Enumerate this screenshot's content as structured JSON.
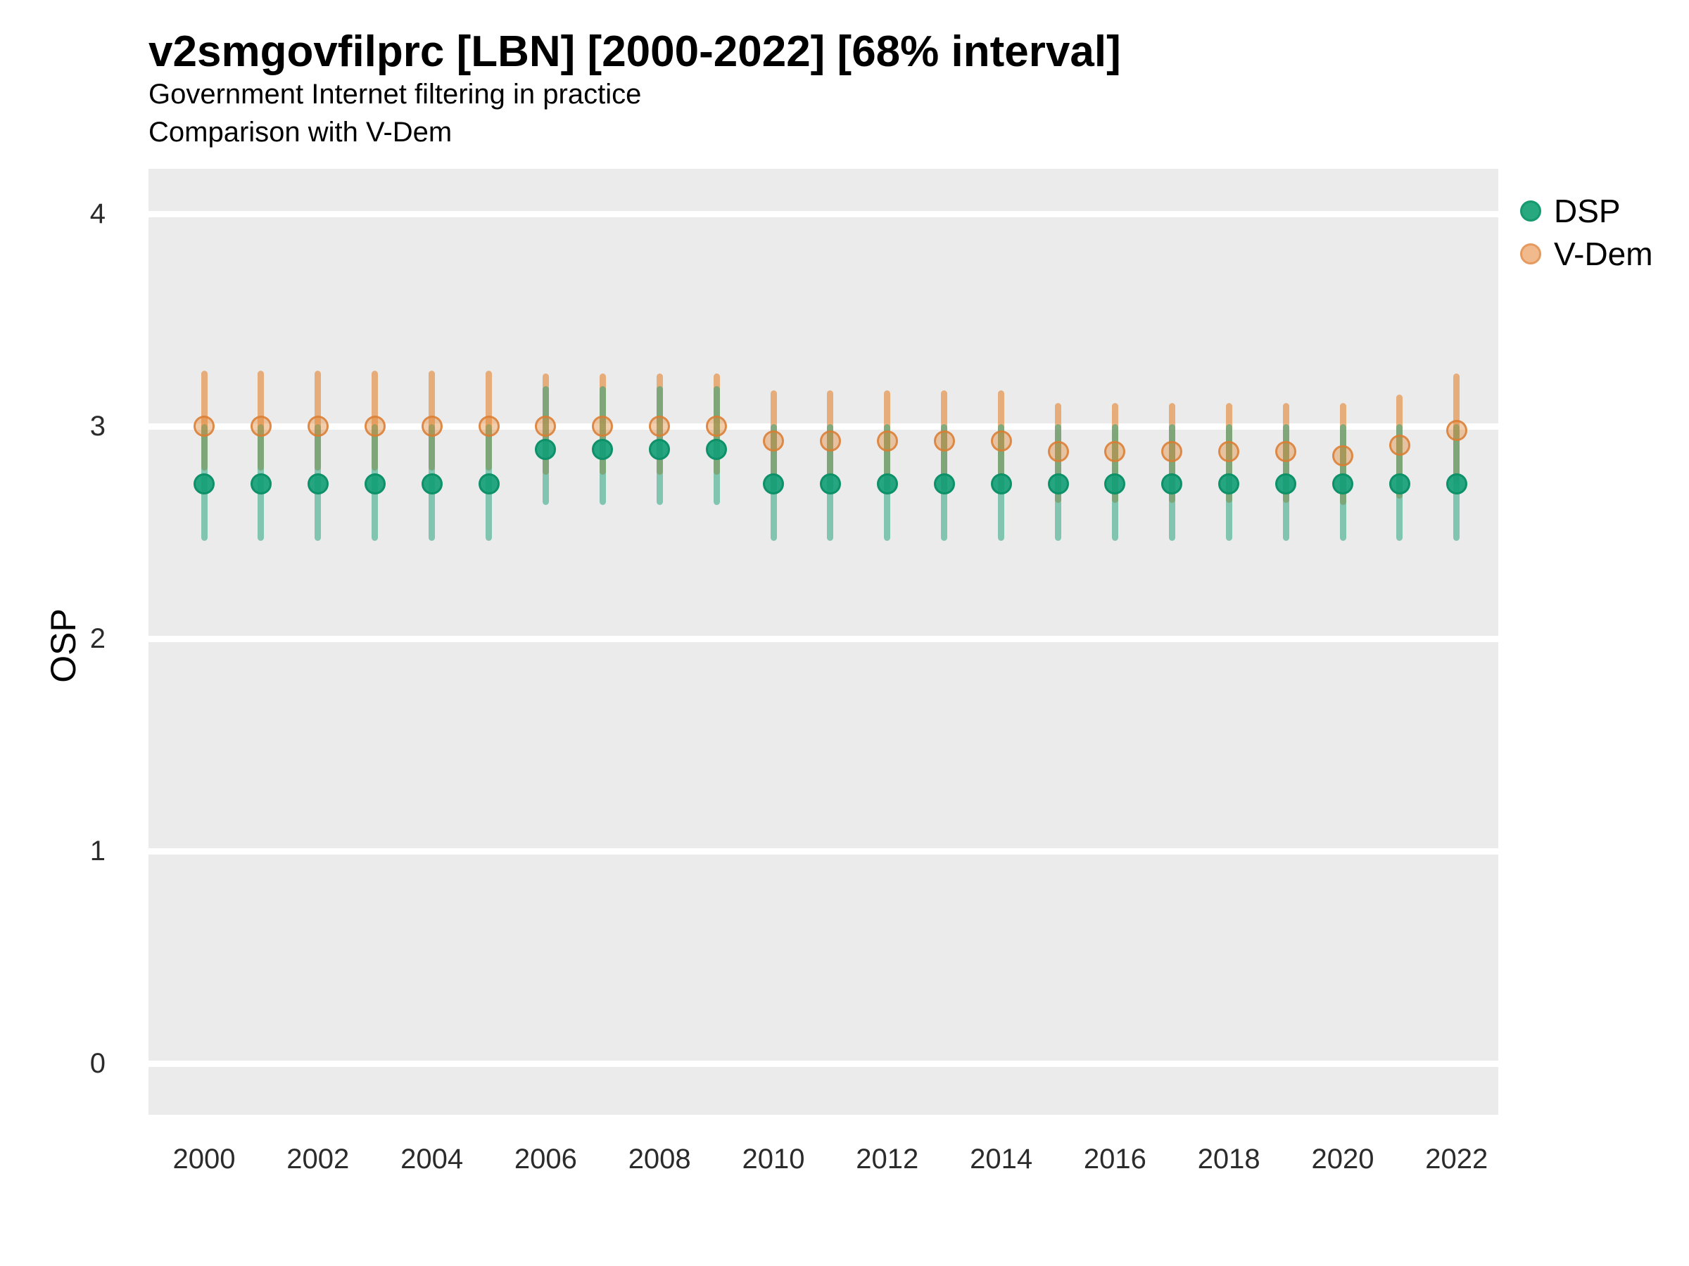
{
  "header": {
    "title": "v2smgovfilprc [LBN] [2000-2022] [68% interval]",
    "subtitle": "Government Internet filtering in practice",
    "subtitle2": "Comparison with V-Dem"
  },
  "legend": {
    "items": [
      {
        "id": "dsp",
        "label": "DSP",
        "color": "#1BA179"
      },
      {
        "id": "vdem",
        "label": "V-Dem",
        "color": "#E28A4C"
      }
    ],
    "position": "right-top"
  },
  "chart_data": {
    "type": "pointrange",
    "title": "v2smgovfilprc [LBN] [2000-2022] [68% interval]",
    "subtitle": "Government Internet filtering in practice",
    "subtitle2": "Comparison with V-Dem",
    "xlabel": "",
    "ylabel": "OSP",
    "interval": "68%",
    "ylim": [
      -0.25,
      4.25
    ],
    "yticks": [
      0,
      1,
      2,
      3,
      4
    ],
    "xticks": [
      2000,
      2002,
      2004,
      2006,
      2008,
      2010,
      2012,
      2014,
      2016,
      2018,
      2020,
      2022
    ],
    "grid": "white horizontal major lines on gray panel",
    "panel_bg": "#EBEBEB",
    "gridline_color": "#FFFFFF",
    "x": [
      2000,
      2001,
      2002,
      2003,
      2004,
      2005,
      2006,
      2007,
      2008,
      2009,
      2010,
      2011,
      2012,
      2013,
      2014,
      2015,
      2016,
      2017,
      2018,
      2019,
      2020,
      2021,
      2022
    ],
    "series": [
      {
        "name": "DSP",
        "color": "#1BA179",
        "values": [
          2.73,
          2.73,
          2.73,
          2.73,
          2.73,
          2.73,
          2.89,
          2.89,
          2.89,
          2.89,
          2.73,
          2.73,
          2.73,
          2.73,
          2.73,
          2.73,
          2.73,
          2.73,
          2.73,
          2.73,
          2.73,
          2.73,
          2.73
        ],
        "lower": [
          2.46,
          2.46,
          2.46,
          2.46,
          2.46,
          2.46,
          2.63,
          2.63,
          2.63,
          2.63,
          2.46,
          2.46,
          2.46,
          2.46,
          2.46,
          2.46,
          2.46,
          2.46,
          2.46,
          2.46,
          2.46,
          2.46,
          2.46
        ],
        "upper": [
          3.01,
          3.01,
          3.01,
          3.01,
          3.01,
          3.01,
          3.19,
          3.19,
          3.19,
          3.19,
          3.01,
          3.01,
          3.01,
          3.01,
          3.01,
          3.01,
          3.01,
          3.01,
          3.01,
          3.01,
          3.01,
          3.01,
          3.01
        ]
      },
      {
        "name": "V-Dem",
        "color": "#E28A4C",
        "values": [
          3.0,
          3.0,
          3.0,
          3.0,
          3.0,
          3.0,
          3.0,
          3.0,
          3.0,
          3.0,
          2.93,
          2.93,
          2.93,
          2.93,
          2.93,
          2.88,
          2.88,
          2.88,
          2.88,
          2.88,
          2.86,
          2.91,
          2.98
        ],
        "lower": [
          2.79,
          2.79,
          2.79,
          2.79,
          2.79,
          2.79,
          2.77,
          2.77,
          2.77,
          2.77,
          2.7,
          2.7,
          2.7,
          2.7,
          2.7,
          2.64,
          2.64,
          2.64,
          2.64,
          2.64,
          2.63,
          2.66,
          2.74
        ],
        "upper": [
          3.26,
          3.26,
          3.26,
          3.26,
          3.26,
          3.26,
          3.25,
          3.25,
          3.25,
          3.25,
          3.17,
          3.17,
          3.17,
          3.17,
          3.17,
          3.11,
          3.11,
          3.11,
          3.11,
          3.11,
          3.11,
          3.15,
          3.25
        ]
      }
    ]
  }
}
